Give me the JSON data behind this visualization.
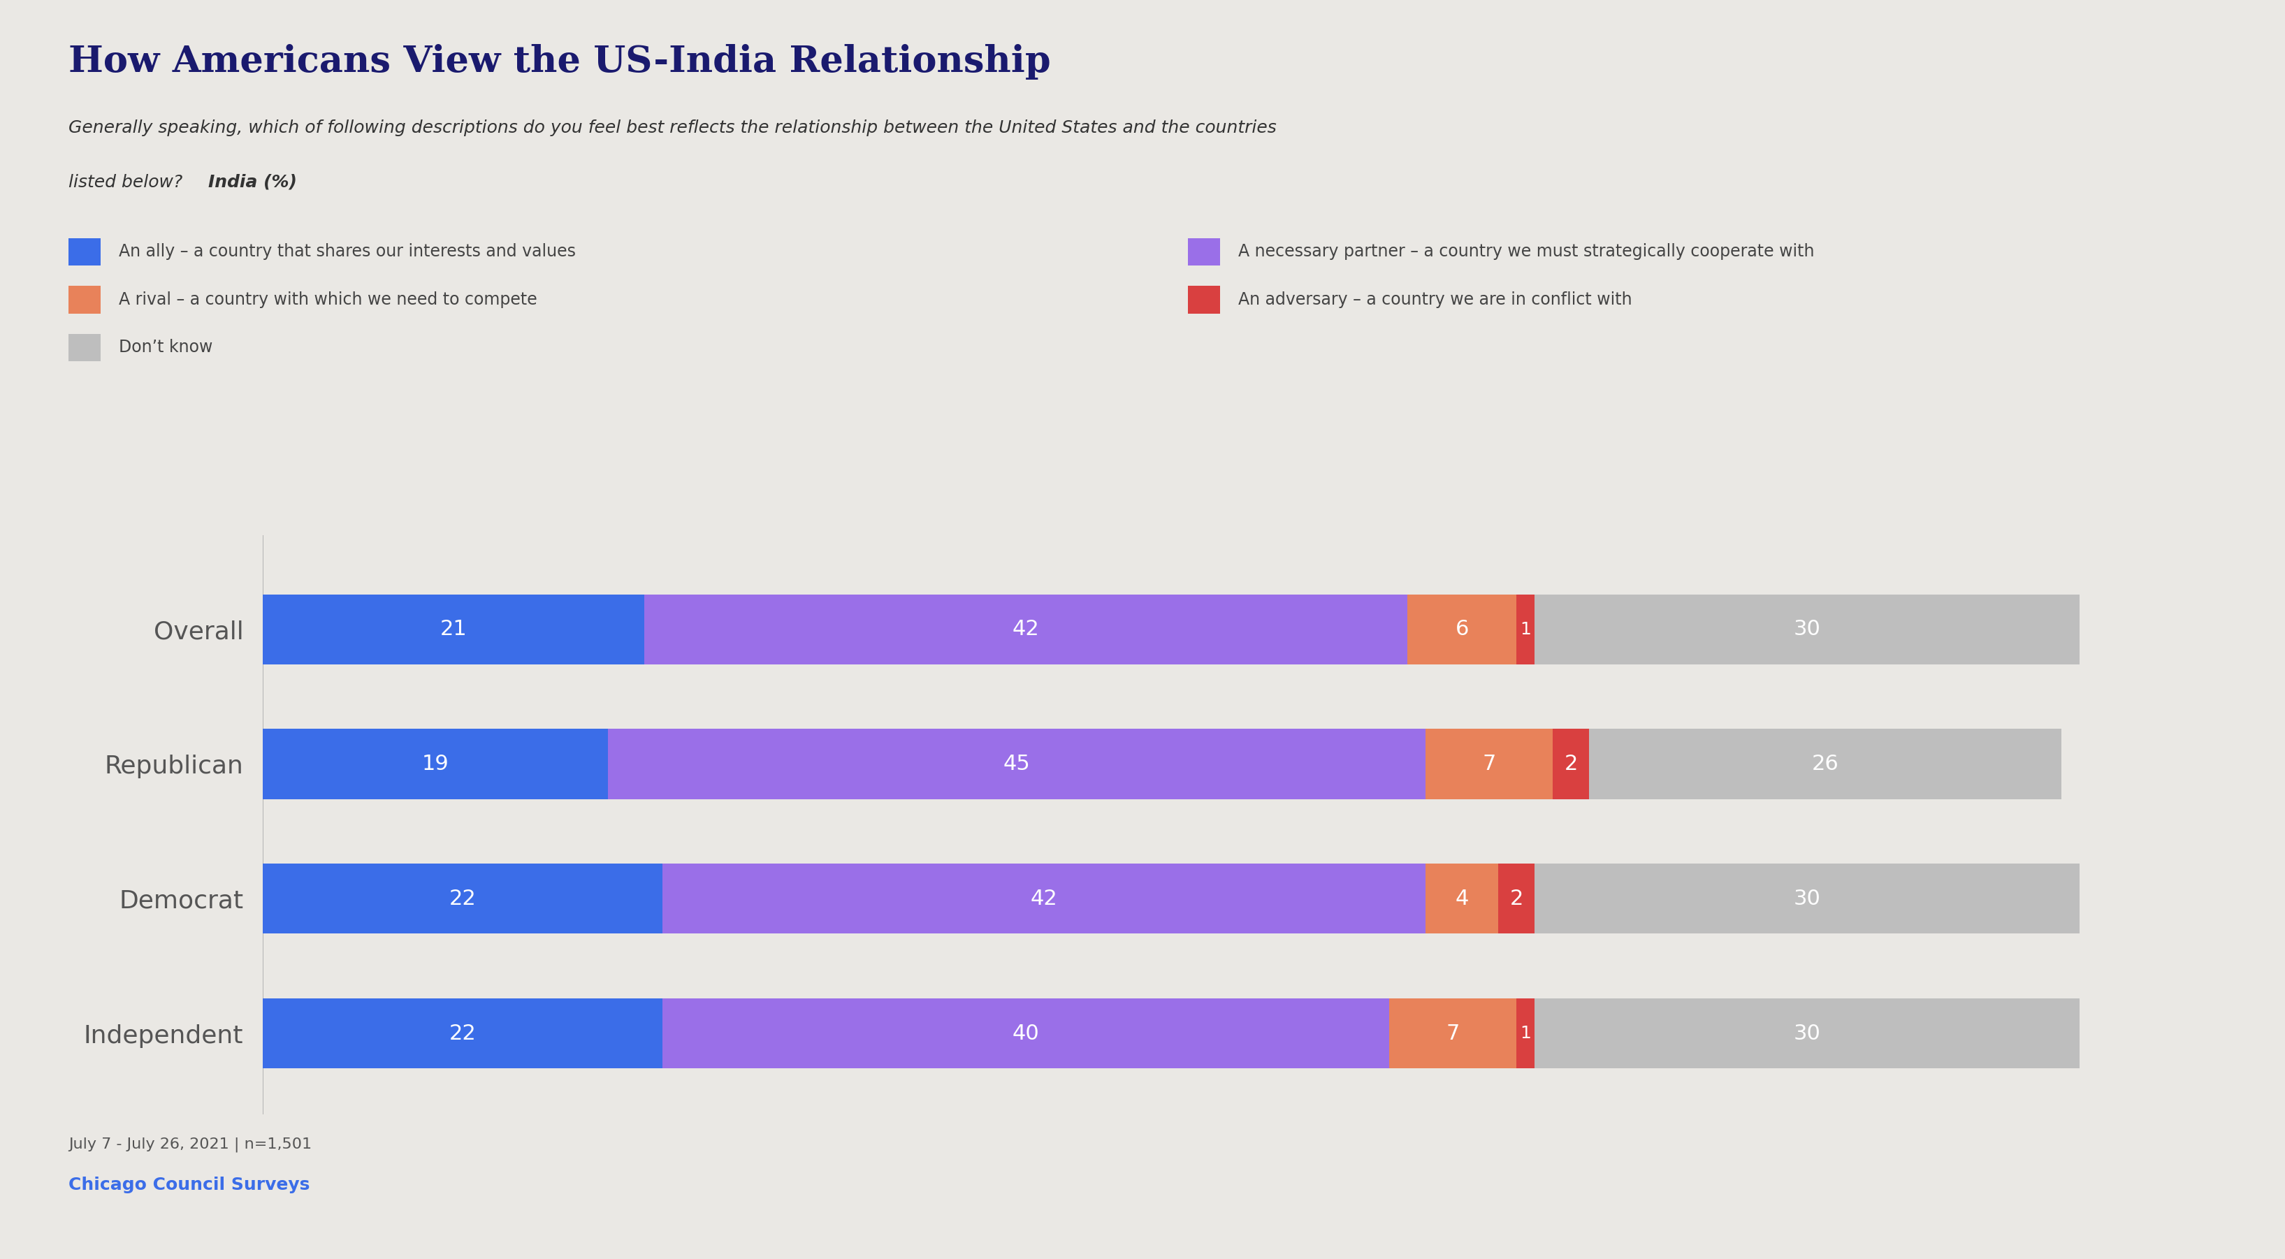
{
  "title": "How Americans View the US-India Relationship",
  "subtitle_line1": "Generally speaking, which of following descriptions do you feel best reflects the relationship between the United States and the countries",
  "subtitle_line2_normal": "listed below? ",
  "subtitle_line2_bold": "India (%)",
  "background_color": "#eae8e4",
  "categories": [
    "Overall",
    "Republican",
    "Democrat",
    "Independent"
  ],
  "segments": {
    "ally": [
      21,
      19,
      22,
      22
    ],
    "partner": [
      42,
      45,
      42,
      40
    ],
    "rival": [
      6,
      7,
      4,
      7
    ],
    "adversary": [
      1,
      2,
      2,
      1
    ],
    "dontknow": [
      30,
      26,
      30,
      30
    ]
  },
  "colors": {
    "ally": "#3b6de8",
    "partner": "#9a6fe8",
    "rival": "#e8825a",
    "adversary": "#d94040",
    "dontknow": "#bebebe"
  },
  "legend": [
    {
      "key": "ally",
      "label": "An ally – a country that shares our interests and values"
    },
    {
      "key": "partner",
      "label": "A necessary partner – a country we must strategically cooperate with"
    },
    {
      "key": "rival",
      "label": "A rival – a country with which we need to compete"
    },
    {
      "key": "adversary",
      "label": "An adversary – a country we are in conflict with"
    },
    {
      "key": "dontknow",
      "label": "Don’t know"
    }
  ],
  "footnote": "July 7 - July 26, 2021 | n=1,501",
  "source": "Chicago Council Surveys",
  "source_color": "#3b6de8",
  "title_color": "#1a1a6e",
  "label_color": "#ffffff",
  "ytick_color": "#555555",
  "bar_height": 0.52
}
